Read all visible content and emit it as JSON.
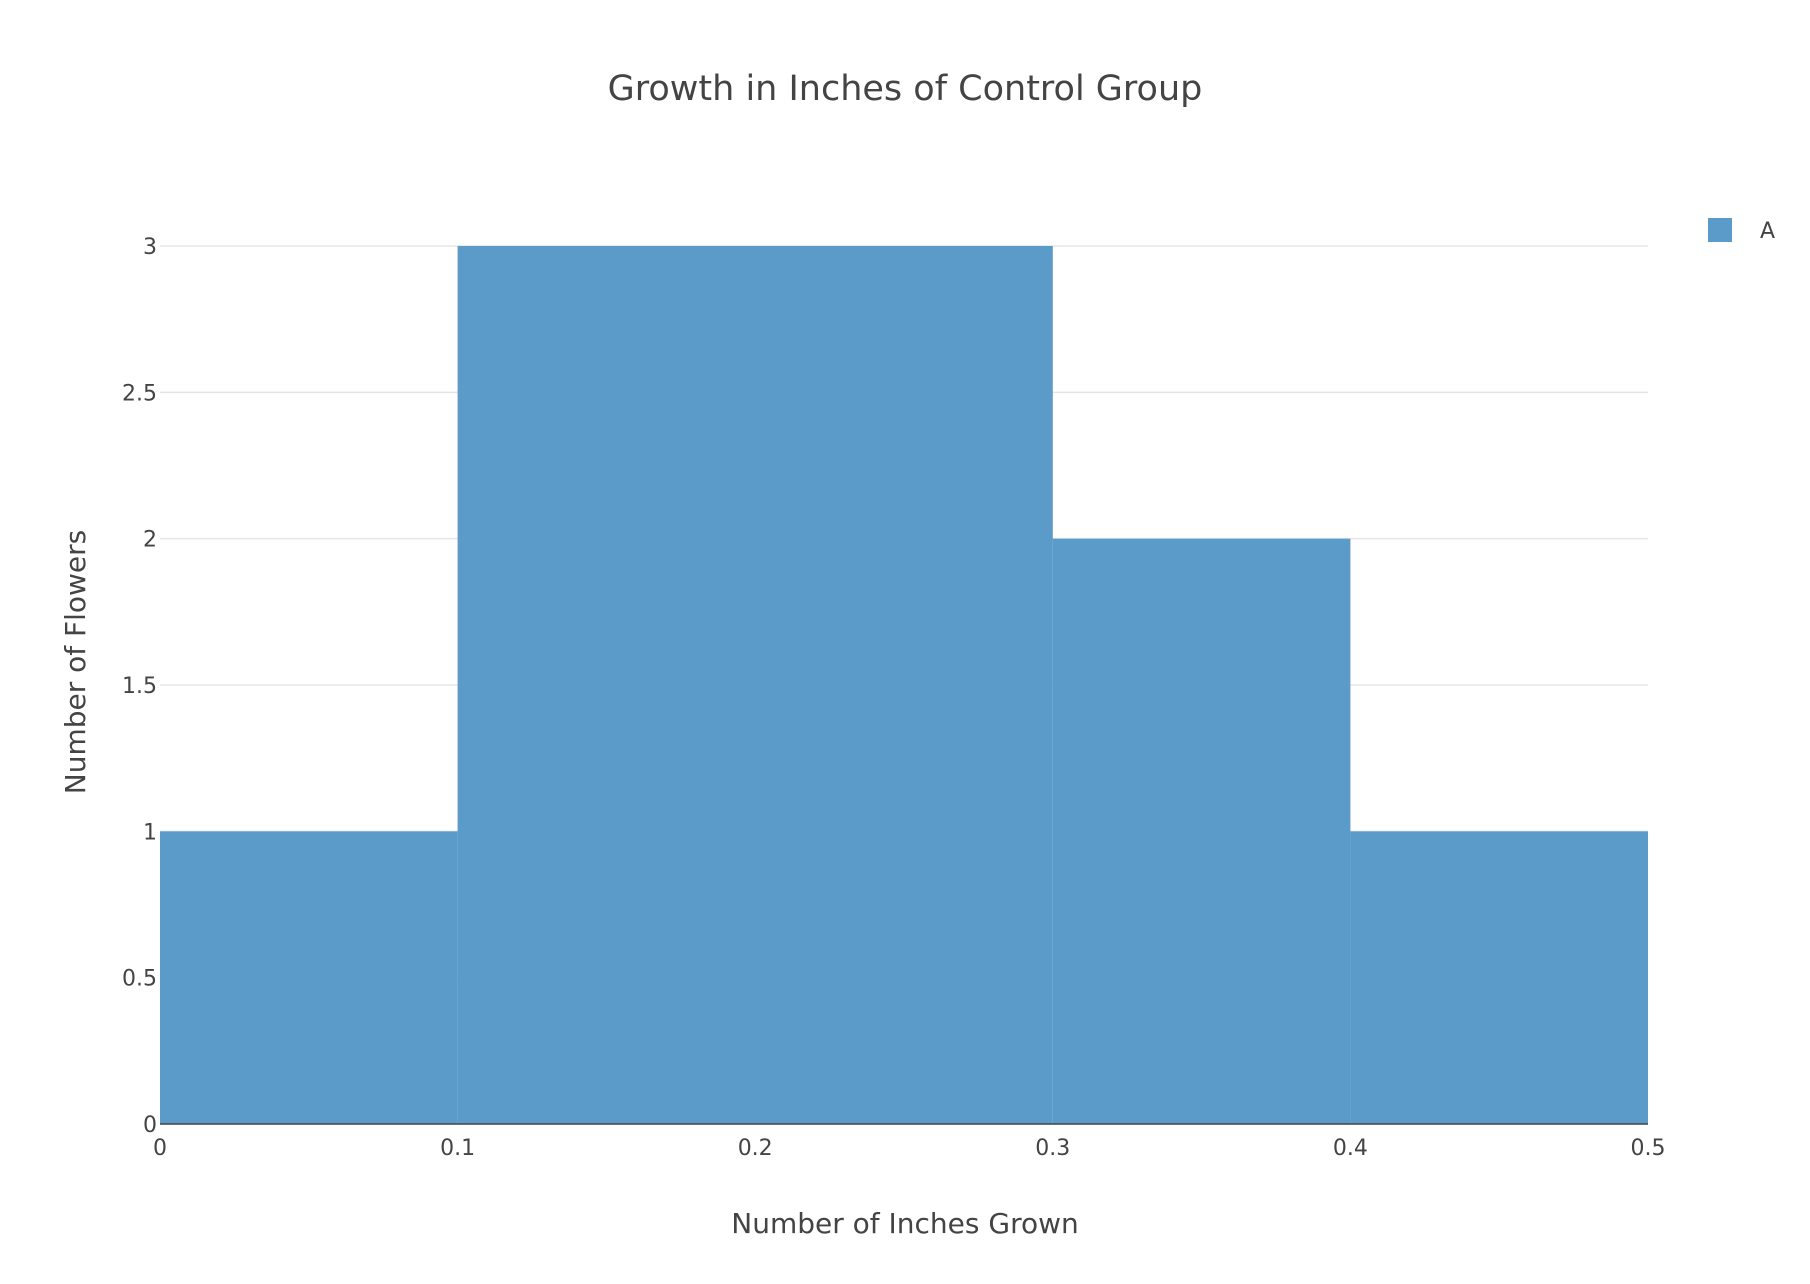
{
  "chart_data": {
    "type": "bar",
    "title": "Growth in Inches of Control Group",
    "xlabel": "Number of Inches Grown",
    "ylabel": "Number of Flowers",
    "xlim": [
      0,
      0.5
    ],
    "ylim": [
      0,
      3
    ],
    "x_ticks": [
      "0",
      "0.1",
      "0.2",
      "0.3",
      "0.4",
      "0.5"
    ],
    "y_ticks": [
      "0",
      "0.5",
      "1",
      "1.5",
      "2",
      "2.5",
      "3"
    ],
    "bins": [
      {
        "start": 0.0,
        "end": 0.1,
        "value": 1
      },
      {
        "start": 0.1,
        "end": 0.3,
        "value": 3
      },
      {
        "start": 0.3,
        "end": 0.4,
        "value": 2
      },
      {
        "start": 0.4,
        "end": 0.5,
        "value": 1
      }
    ],
    "series": [
      {
        "name": "A",
        "color": "#5b9bc9"
      }
    ],
    "grid": true,
    "legend_position": "top-right"
  }
}
